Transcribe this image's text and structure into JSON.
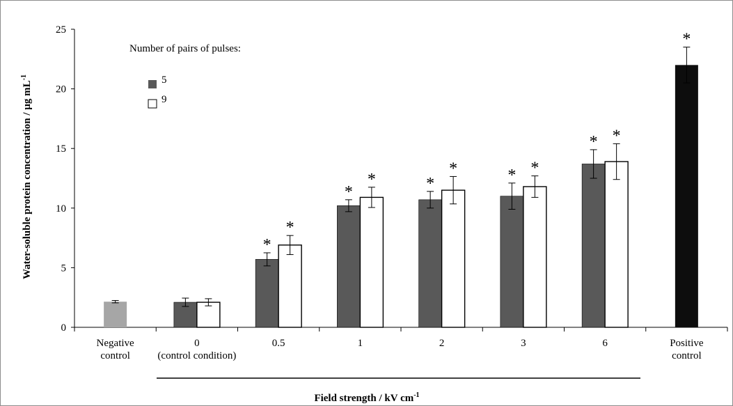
{
  "chart_data": {
    "type": "bar",
    "title": "",
    "ylabel": "Water-soluble protein concentration / µg mL",
    "ylabel_sup": "-1",
    "xlabel": "Field strength / kV cm",
    "xlabel_sup": "-1",
    "ylim": [
      0,
      25
    ],
    "yticks": [
      0,
      5,
      10,
      15,
      20,
      25
    ],
    "categories": [
      [
        "Negative",
        "control"
      ],
      [
        "0",
        "(control condition)"
      ],
      [
        "0.5"
      ],
      [
        "1"
      ],
      [
        "2"
      ],
      [
        "3"
      ],
      [
        "6"
      ],
      [
        "Positive",
        "control"
      ]
    ],
    "legend": {
      "title": "Number of pairs of pulses:",
      "placement": "top-left"
    },
    "series": [
      {
        "name": "5",
        "color": "#595959",
        "values": [
          null,
          2.1,
          5.7,
          10.2,
          10.7,
          11.0,
          13.7,
          null
        ],
        "errors": [
          null,
          0.35,
          0.55,
          0.5,
          0.7,
          1.1,
          1.2,
          null
        ],
        "significant": [
          false,
          false,
          true,
          true,
          true,
          true,
          true,
          false
        ]
      },
      {
        "name": "9",
        "color": "#ffffff",
        "values": [
          null,
          2.1,
          6.9,
          10.9,
          11.5,
          11.8,
          13.9,
          null
        ],
        "errors": [
          null,
          0.3,
          0.8,
          0.85,
          1.15,
          0.9,
          1.5,
          null
        ],
        "significant": [
          false,
          false,
          true,
          true,
          true,
          true,
          true,
          false
        ]
      }
    ],
    "controls": [
      {
        "category_index": 0,
        "value": 2.15,
        "error": 0.1,
        "color": "#a6a6a6",
        "significant": false
      },
      {
        "category_index": 7,
        "value": 22.0,
        "error": 1.5,
        "color": "#0d0d0d",
        "significant": true
      }
    ],
    "significance_marker": "*",
    "grid": false
  }
}
